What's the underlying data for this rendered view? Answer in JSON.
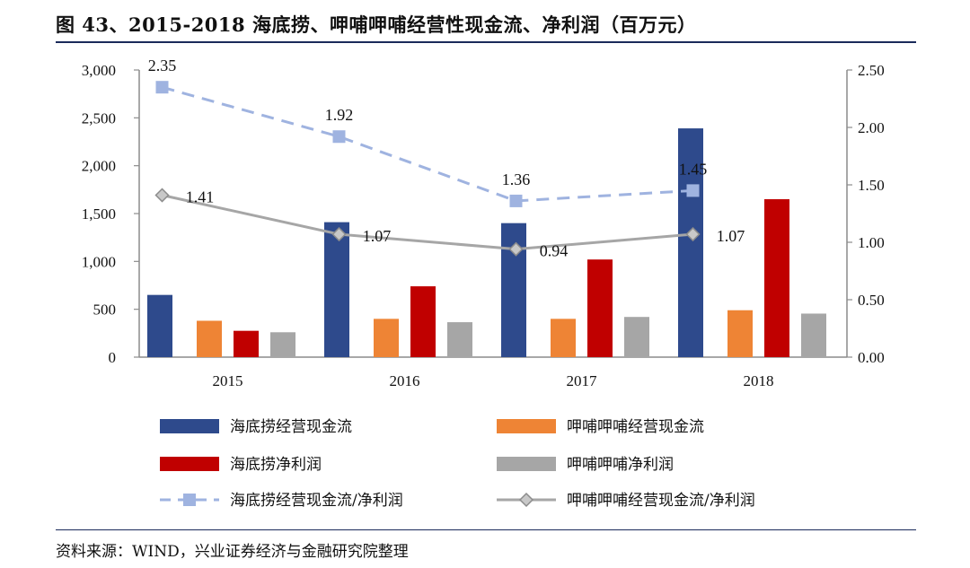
{
  "figure": {
    "title": "图 43、2015-2018 海底捞、呷哺呷哺经营性现金流、净利润（百万元）",
    "source": "资料来源：WIND，兴业证券经济与金融研究院整理"
  },
  "chart_data": {
    "type": "bar",
    "categories": [
      "2015",
      "2016",
      "2017",
      "2018"
    ],
    "y_left": {
      "min": 0,
      "max": 3000,
      "ticks": [
        "0",
        "500",
        "1,000",
        "1,500",
        "2,000",
        "2,500",
        "3,000"
      ]
    },
    "y_right": {
      "min": 0,
      "max": 2.5,
      "ticks": [
        "0.00",
        "0.50",
        "1.00",
        "1.50",
        "2.00",
        "2.50"
      ]
    },
    "series": [
      {
        "name": "海底捞经营现金流",
        "kind": "bar",
        "axis": "left",
        "color": "#2e4a8c",
        "values": [
          650,
          1410,
          1400,
          2390
        ]
      },
      {
        "name": "呷哺呷哺经营现金流",
        "kind": "bar",
        "axis": "left",
        "color": "#ee8435",
        "values": [
          380,
          400,
          400,
          490
        ]
      },
      {
        "name": "海底捞净利润",
        "kind": "bar",
        "axis": "left",
        "color": "#c00000",
        "values": [
          275,
          740,
          1020,
          1650
        ]
      },
      {
        "name": "呷哺呷哺净利润",
        "kind": "bar",
        "axis": "left",
        "color": "#a6a6a6",
        "values": [
          260,
          365,
          420,
          455
        ]
      },
      {
        "name": "海底捞经营现金流/净利润",
        "kind": "line",
        "axis": "right",
        "color": "#9fb3e0",
        "dashed": true,
        "marker": "square",
        "values": [
          2.35,
          1.92,
          1.36,
          1.45
        ],
        "labels": [
          "2.35",
          "1.92",
          "1.36",
          "1.45"
        ]
      },
      {
        "name": "呷哺呷哺经营现金流/净利润",
        "kind": "line",
        "axis": "right",
        "color": "#a6a6a6",
        "dashed": false,
        "marker": "diamond",
        "values": [
          1.41,
          1.07,
          0.94,
          1.07
        ],
        "labels": [
          "1.41",
          "1.07",
          "0.94",
          "1.07"
        ]
      }
    ],
    "legend_position": "bottom",
    "grid": false
  }
}
